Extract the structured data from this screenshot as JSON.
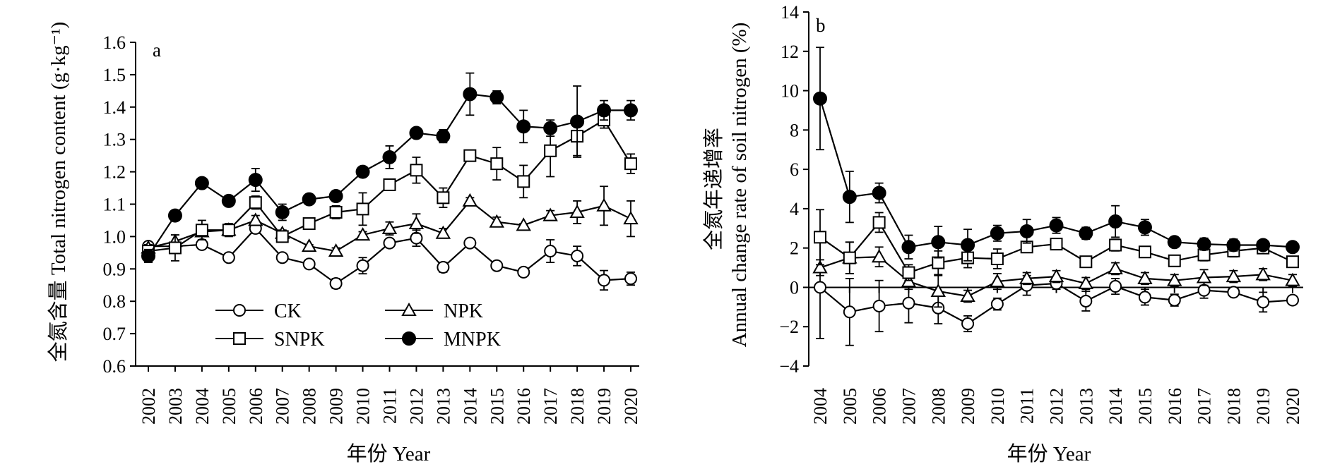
{
  "chart_data": [
    {
      "type": "line",
      "panel_label": "a",
      "ylabel": "全氮含量 Total nitrogen content (g·kg⁻¹)",
      "xlabel": "年份 Year",
      "ylim": [
        0.6,
        1.6
      ],
      "yticks": [
        "0.6",
        "0.7",
        "0.8",
        "0.9",
        "1.0",
        "1.1",
        "1.2",
        "1.3",
        "1.4",
        "1.5",
        "1.6"
      ],
      "categories": [
        "2002",
        "2003",
        "2004",
        "2005",
        "2006",
        "2007",
        "2008",
        "2009",
        "2010",
        "2011",
        "2012",
        "2013",
        "2014",
        "2015",
        "2016",
        "2017",
        "2018",
        "2019",
        "2020"
      ],
      "series": [
        {
          "name": "CK",
          "marker": "circle-open",
          "values": [
            0.97,
            0.97,
            0.975,
            0.935,
            1.025,
            0.935,
            0.915,
            0.855,
            0.91,
            0.98,
            0.995,
            0.905,
            0.98,
            0.91,
            0.89,
            0.955,
            0.94,
            0.865,
            0.87
          ],
          "errors": [
            0.01,
            0.01,
            0.01,
            0.005,
            0.015,
            0.01,
            0.005,
            0.015,
            0.025,
            0.01,
            0.025,
            0.015,
            0.005,
            0.01,
            0.005,
            0.035,
            0.03,
            0.03,
            0.02
          ]
        },
        {
          "name": "NPK",
          "marker": "triangle-open",
          "values": [
            0.965,
            0.985,
            1.015,
            1.02,
            1.05,
            1.01,
            0.97,
            0.955,
            1.005,
            1.025,
            1.04,
            1.01,
            1.11,
            1.045,
            1.035,
            1.065,
            1.075,
            1.095,
            1.055
          ],
          "errors": [
            0.01,
            0.02,
            0.01,
            0.015,
            0.015,
            0.01,
            0.005,
            0.01,
            0.01,
            0.02,
            0.03,
            0.015,
            0.01,
            0.015,
            0.005,
            0.015,
            0.035,
            0.06,
            0.055
          ]
        },
        {
          "name": "SNPK",
          "marker": "square-open",
          "values": [
            0.955,
            0.965,
            1.02,
            1.02,
            1.105,
            1.0,
            1.04,
            1.075,
            1.085,
            1.16,
            1.205,
            1.12,
            1.25,
            1.225,
            1.17,
            1.265,
            1.31,
            1.36,
            1.225
          ]
        },
        {
          "name": "MNPK",
          "marker": "circle-filled",
          "values": [
            0.94,
            1.065,
            1.165,
            1.11,
            1.175,
            1.075,
            1.115,
            1.125,
            1.2,
            1.245,
            1.32,
            1.31,
            1.44,
            1.43,
            1.34,
            1.335,
            1.355,
            1.39,
            1.39
          ]
        }
      ],
      "errors_snpk": [
        0.015,
        0.04,
        0.03,
        0.02,
        0.02,
        0.01,
        0.01,
        0.02,
        0.05,
        0.01,
        0.04,
        0.03,
        0.01,
        0.05,
        0.05,
        0.08,
        0.06,
        0.025,
        0.03
      ],
      "errors_mnpk": [
        0.02,
        0.01,
        0.01,
        0.01,
        0.035,
        0.025,
        0.01,
        0.015,
        0.015,
        0.035,
        0.01,
        0.02,
        0.065,
        0.02,
        0.05,
        0.025,
        0.11,
        0.03,
        0.03
      ]
    },
    {
      "type": "line",
      "panel_label": "b",
      "ylabel_zh": "全氮年递增率",
      "ylabel_en": "Annual change rate of soil nitrogen (%)",
      "xlabel": "年份 Year",
      "ylim": [
        -4,
        14
      ],
      "yticks": [
        "−4",
        "−2",
        "0",
        "2",
        "4",
        "6",
        "8",
        "10",
        "12",
        "14"
      ],
      "categories": [
        "2004",
        "2005",
        "2006",
        "2007",
        "2008",
        "2009",
        "2010",
        "2011",
        "2012",
        "2013",
        "2014",
        "2015",
        "2016",
        "2017",
        "2018",
        "2019",
        "2020"
      ],
      "series": [
        {
          "name": "CK",
          "marker": "circle-open",
          "values": [
            0.0,
            -1.25,
            -0.95,
            -0.8,
            -1.05,
            -1.85,
            -0.85,
            0.1,
            0.2,
            -0.7,
            0.05,
            -0.5,
            -0.65,
            -0.15,
            -0.25,
            -0.75,
            -0.65
          ],
          "errors": [
            2.6,
            1.7,
            1.3,
            1.0,
            0.8,
            0.4,
            0.3,
            0.5,
            0.3,
            0.5,
            0.4,
            0.4,
            0.3,
            0.4,
            0.2,
            0.5,
            0.2
          ]
        },
        {
          "name": "NPK",
          "marker": "triangle-open",
          "values": [
            1.0,
            1.5,
            1.55,
            0.3,
            -0.2,
            -0.45,
            0.3,
            0.45,
            0.55,
            0.2,
            0.95,
            0.45,
            0.35,
            0.5,
            0.55,
            0.65,
            0.35
          ],
          "errors": [
            0.4,
            0.8,
            0.5,
            0.4,
            0.8,
            0.3,
            0.4,
            0.3,
            0.3,
            0.3,
            0.3,
            0.3,
            0.3,
            0.4,
            0.3,
            0.3,
            0.3
          ]
        },
        {
          "name": "SNPK",
          "marker": "square-open",
          "values": [
            2.55,
            1.5,
            3.3,
            0.75,
            1.25,
            1.5,
            1.45,
            2.05,
            2.2,
            1.3,
            2.15,
            1.8,
            1.35,
            1.65,
            1.85,
            2.0,
            1.3
          ],
          "errors": [
            1.4,
            0.8,
            0.5,
            0.4,
            0.6,
            0.5,
            0.5,
            0.2,
            0.2,
            0.2,
            0.3,
            0.2,
            0.2,
            0.3,
            0.3,
            0.2,
            0.2
          ]
        },
        {
          "name": "MNPK",
          "marker": "circle-filled",
          "values": [
            9.6,
            4.6,
            4.8,
            2.05,
            2.3,
            2.15,
            2.75,
            2.85,
            3.15,
            2.75,
            3.35,
            3.05,
            2.3,
            2.2,
            2.15,
            2.15,
            2.05
          ],
          "errors": [
            2.6,
            1.3,
            0.5,
            0.6,
            0.8,
            0.8,
            0.4,
            0.6,
            0.4,
            0.3,
            0.8,
            0.4,
            0.2,
            0.3,
            0.3,
            0.2,
            0.2
          ]
        }
      ]
    }
  ]
}
